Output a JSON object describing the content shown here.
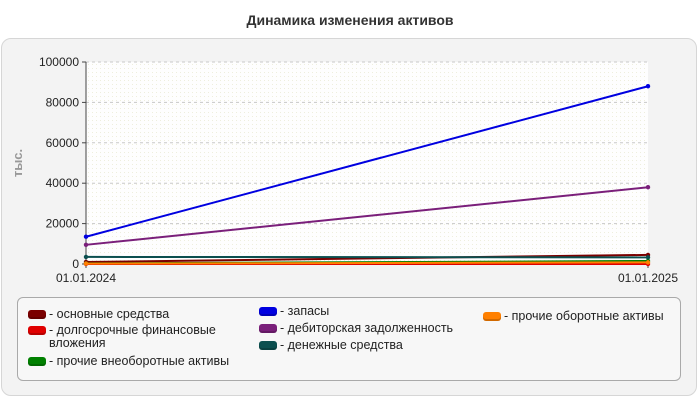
{
  "chart_title": "Динамика изменения активов",
  "chart_data": {
    "type": "line",
    "ylabel": "тыс.",
    "x": [
      "01.01.2024",
      "01.01.2025"
    ],
    "ylim": [
      0,
      100000
    ],
    "yticks": [
      "0",
      "20000",
      "40000",
      "60000",
      "80000",
      "100000"
    ],
    "grid": true,
    "legend_placement": "bottom",
    "series": [
      {
        "name": "- основные средства",
        "color": "#7a0000",
        "values": [
          1000,
          4500
        ]
      },
      {
        "name": "- долгосрочные финансовые вложения",
        "color": "#e00000",
        "values": [
          0,
          0
        ]
      },
      {
        "name": "- прочие внеоборотные активы",
        "color": "#008000",
        "values": [
          300,
          1500
        ]
      },
      {
        "name": "- запасы",
        "color": "#0000e0",
        "values": [
          13500,
          88000
        ]
      },
      {
        "name": "- дебиторская задолженность",
        "color": "#7a1f7a",
        "values": [
          9500,
          38000
        ]
      },
      {
        "name": "- денежные средства",
        "color": "#0b4f4f",
        "values": [
          3500,
          3300
        ]
      },
      {
        "name": "- прочие оборотные активы",
        "color": "#ff8000",
        "values": [
          200,
          800
        ]
      }
    ]
  }
}
